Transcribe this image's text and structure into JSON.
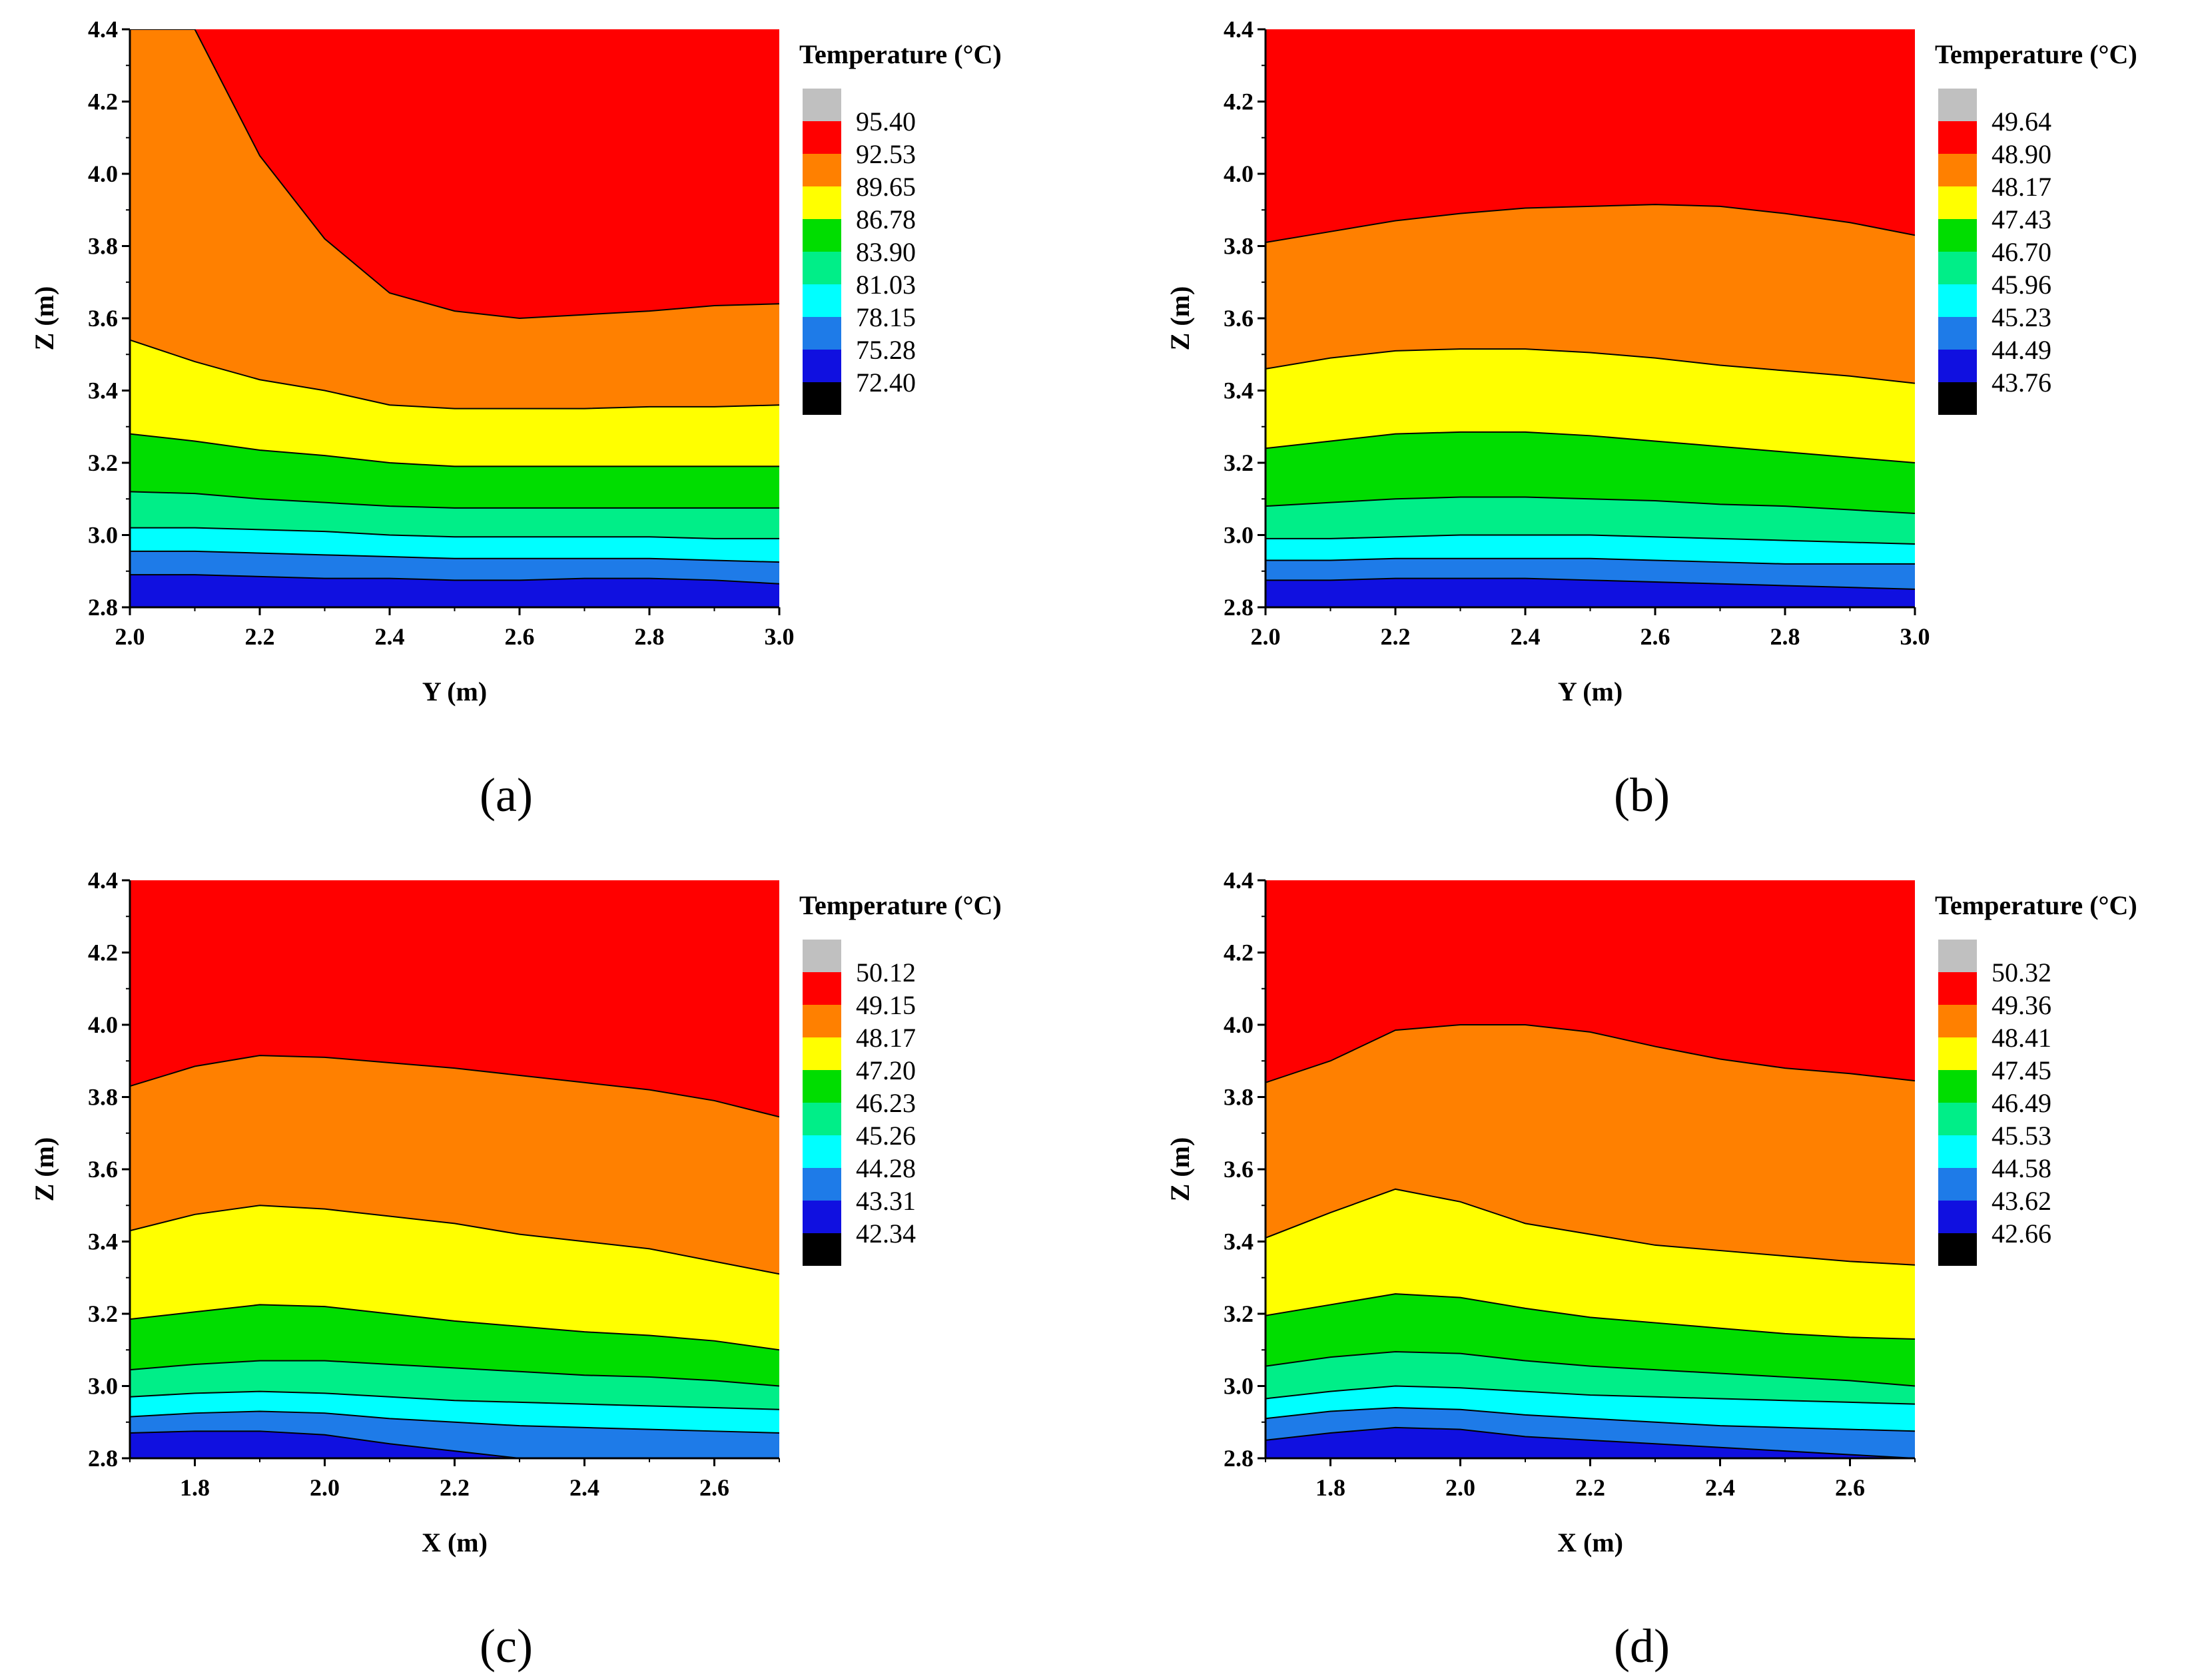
{
  "figure": "Temperature contour plots",
  "colors": [
    "#1010e0",
    "#1e7be8",
    "#00ffff",
    "#00ee88",
    "#00dd00",
    "#ffff00",
    "#ff8000",
    "#ff0000",
    "#c0c0c0"
  ],
  "chart_data": [
    {
      "type": "contour",
      "panel": "(a)",
      "legend_title": "Temperature (°C)",
      "legend_levels": [
        "95.40",
        "92.53",
        "89.65",
        "86.78",
        "83.90",
        "81.03",
        "78.15",
        "75.28",
        "72.40"
      ],
      "xlabel": "Y (m)",
      "ylabel": "Z (m)",
      "xlim": [
        2.0,
        3.0
      ],
      "ylim": [
        2.8,
        4.4
      ],
      "xticks": [
        "2.0",
        "2.2",
        "2.4",
        "2.6",
        "2.8",
        "3.0"
      ],
      "yticks": [
        "2.8",
        "3.0",
        "3.2",
        "3.4",
        "3.6",
        "3.8",
        "4.0",
        "4.2",
        "4.4"
      ],
      "xs": [
        2.0,
        2.1,
        2.2,
        2.3,
        2.4,
        2.5,
        2.6,
        2.7,
        2.8,
        2.9,
        3.0
      ],
      "contour_lines": [
        {
          "level": "75.28",
          "z": [
            2.89,
            2.89,
            2.885,
            2.88,
            2.88,
            2.875,
            2.875,
            2.88,
            2.88,
            2.875,
            2.865
          ]
        },
        {
          "level": "78.15",
          "z": [
            2.955,
            2.955,
            2.95,
            2.945,
            2.94,
            2.935,
            2.935,
            2.935,
            2.935,
            2.93,
            2.925
          ]
        },
        {
          "level": "81.03",
          "z": [
            3.02,
            3.02,
            3.015,
            3.01,
            3.0,
            2.995,
            2.995,
            2.995,
            2.995,
            2.99,
            2.99
          ]
        },
        {
          "level": "83.90",
          "z": [
            3.12,
            3.115,
            3.1,
            3.09,
            3.08,
            3.075,
            3.075,
            3.075,
            3.075,
            3.075,
            3.075
          ]
        },
        {
          "level": "86.78",
          "z": [
            3.28,
            3.26,
            3.235,
            3.22,
            3.2,
            3.19,
            3.19,
            3.19,
            3.19,
            3.19,
            3.19
          ]
        },
        {
          "level": "89.65",
          "z": [
            3.54,
            3.48,
            3.43,
            3.4,
            3.36,
            3.35,
            3.35,
            3.35,
            3.355,
            3.355,
            3.36
          ]
        },
        {
          "level": "92.53",
          "z": [
            4.4,
            4.4,
            4.05,
            3.82,
            3.67,
            3.62,
            3.6,
            3.61,
            3.62,
            3.635,
            3.64
          ]
        }
      ]
    },
    {
      "type": "contour",
      "panel": "(b)",
      "legend_title": "Temperature (°C)",
      "legend_levels": [
        "49.64",
        "48.90",
        "48.17",
        "47.43",
        "46.70",
        "45.96",
        "45.23",
        "44.49",
        "43.76"
      ],
      "xlabel": "Y (m)",
      "ylabel": "Z (m)",
      "xlim": [
        2.0,
        3.0
      ],
      "ylim": [
        2.8,
        4.4
      ],
      "xticks": [
        "2.0",
        "2.2",
        "2.4",
        "2.6",
        "2.8",
        "3.0"
      ],
      "yticks": [
        "2.8",
        "3.0",
        "3.2",
        "3.4",
        "3.6",
        "3.8",
        "4.0",
        "4.2",
        "4.4"
      ],
      "xs": [
        2.0,
        2.1,
        2.2,
        2.3,
        2.4,
        2.5,
        2.6,
        2.7,
        2.8,
        2.9,
        3.0
      ],
      "contour_lines": [
        {
          "level": "44.49",
          "z": [
            2.875,
            2.875,
            2.88,
            2.88,
            2.88,
            2.875,
            2.87,
            2.865,
            2.86,
            2.855,
            2.85
          ]
        },
        {
          "level": "45.23",
          "z": [
            2.93,
            2.93,
            2.935,
            2.935,
            2.935,
            2.935,
            2.93,
            2.925,
            2.92,
            2.92,
            2.92
          ]
        },
        {
          "level": "45.96",
          "z": [
            2.99,
            2.99,
            2.995,
            3.0,
            3.0,
            3.0,
            2.995,
            2.99,
            2.985,
            2.98,
            2.975
          ]
        },
        {
          "level": "46.70",
          "z": [
            3.08,
            3.09,
            3.1,
            3.105,
            3.105,
            3.1,
            3.095,
            3.085,
            3.08,
            3.07,
            3.06
          ]
        },
        {
          "level": "47.43",
          "z": [
            3.24,
            3.26,
            3.28,
            3.285,
            3.285,
            3.275,
            3.26,
            3.245,
            3.23,
            3.215,
            3.2
          ]
        },
        {
          "level": "48.17",
          "z": [
            3.46,
            3.49,
            3.51,
            3.515,
            3.515,
            3.505,
            3.49,
            3.47,
            3.455,
            3.44,
            3.42
          ]
        },
        {
          "level": "48.90",
          "z": [
            3.81,
            3.84,
            3.87,
            3.89,
            3.905,
            3.91,
            3.915,
            3.91,
            3.89,
            3.865,
            3.83
          ]
        }
      ]
    },
    {
      "type": "contour",
      "panel": "(c)",
      "legend_title": "Temperature (°C)",
      "legend_levels": [
        "50.12",
        "49.15",
        "48.17",
        "47.20",
        "46.23",
        "45.26",
        "44.28",
        "43.31",
        "42.34"
      ],
      "xlabel": "X (m)",
      "ylabel": "Z (m)",
      "xlim": [
        1.7,
        2.7
      ],
      "ylim": [
        2.8,
        4.4
      ],
      "xticks": [
        "1.8",
        "2.0",
        "2.2",
        "2.4",
        "2.6"
      ],
      "yticks": [
        "2.8",
        "3.0",
        "3.2",
        "3.4",
        "3.6",
        "3.8",
        "4.0",
        "4.2",
        "4.4"
      ],
      "xs": [
        1.7,
        1.8,
        1.9,
        2.0,
        2.1,
        2.2,
        2.3,
        2.4,
        2.5,
        2.6,
        2.7
      ],
      "contour_lines": [
        {
          "level": "43.31",
          "z": [
            2.87,
            2.875,
            2.875,
            2.865,
            2.84,
            2.82,
            2.8,
            2.8,
            2.8,
            2.8,
            2.8
          ]
        },
        {
          "level": "44.28",
          "z": [
            2.915,
            2.925,
            2.93,
            2.925,
            2.91,
            2.9,
            2.89,
            2.885,
            2.88,
            2.875,
            2.87
          ]
        },
        {
          "level": "45.26",
          "z": [
            2.97,
            2.98,
            2.985,
            2.98,
            2.97,
            2.96,
            2.955,
            2.95,
            2.945,
            2.94,
            2.935
          ]
        },
        {
          "level": "46.23",
          "z": [
            3.045,
            3.06,
            3.07,
            3.07,
            3.06,
            3.05,
            3.04,
            3.03,
            3.025,
            3.015,
            3.0
          ]
        },
        {
          "level": "47.20",
          "z": [
            3.185,
            3.205,
            3.225,
            3.22,
            3.2,
            3.18,
            3.165,
            3.15,
            3.14,
            3.125,
            3.1
          ]
        },
        {
          "level": "48.17",
          "z": [
            3.43,
            3.475,
            3.5,
            3.49,
            3.47,
            3.45,
            3.42,
            3.4,
            3.38,
            3.345,
            3.31
          ]
        },
        {
          "level": "49.15",
          "z": [
            3.83,
            3.885,
            3.915,
            3.91,
            3.895,
            3.88,
            3.86,
            3.84,
            3.82,
            3.79,
            3.745
          ]
        }
      ]
    },
    {
      "type": "contour",
      "panel": "(d)",
      "legend_title": "Temperature (°C)",
      "legend_levels": [
        "50.32",
        "49.36",
        "48.41",
        "47.45",
        "46.49",
        "45.53",
        "44.58",
        "43.62",
        "42.66"
      ],
      "xlabel": "X (m)",
      "ylabel": "Z (m)",
      "xlim": [
        1.7,
        2.7
      ],
      "ylim": [
        2.8,
        4.4
      ],
      "xticks": [
        "1.8",
        "2.0",
        "2.2",
        "2.4",
        "2.6"
      ],
      "yticks": [
        "2.8",
        "3.0",
        "3.2",
        "3.4",
        "3.6",
        "3.8",
        "4.0",
        "4.2",
        "4.4"
      ],
      "xs": [
        1.7,
        1.8,
        1.9,
        2.0,
        2.1,
        2.2,
        2.3,
        2.4,
        2.5,
        2.6,
        2.7
      ],
      "contour_lines": [
        {
          "level": "43.62",
          "z": [
            2.85,
            2.87,
            2.885,
            2.88,
            2.86,
            2.85,
            2.84,
            2.83,
            2.82,
            2.81,
            2.8
          ]
        },
        {
          "level": "44.58",
          "z": [
            2.91,
            2.93,
            2.94,
            2.935,
            2.92,
            2.91,
            2.9,
            2.89,
            2.885,
            2.88,
            2.875
          ]
        },
        {
          "level": "45.53",
          "z": [
            2.965,
            2.985,
            3.0,
            2.995,
            2.985,
            2.975,
            2.97,
            2.965,
            2.96,
            2.955,
            2.95
          ]
        },
        {
          "level": "46.49",
          "z": [
            3.055,
            3.08,
            3.095,
            3.09,
            3.07,
            3.055,
            3.045,
            3.035,
            3.025,
            3.015,
            3.0
          ]
        },
        {
          "level": "47.45",
          "z": [
            3.195,
            3.225,
            3.255,
            3.245,
            3.215,
            3.19,
            3.175,
            3.16,
            3.145,
            3.135,
            3.13
          ]
        },
        {
          "level": "48.41",
          "z": [
            3.41,
            3.48,
            3.545,
            3.51,
            3.45,
            3.42,
            3.39,
            3.375,
            3.36,
            3.345,
            3.335
          ]
        },
        {
          "level": "49.36",
          "z": [
            3.84,
            3.9,
            3.985,
            4.0,
            4.0,
            3.98,
            3.94,
            3.905,
            3.88,
            3.865,
            3.845
          ]
        }
      ]
    }
  ]
}
